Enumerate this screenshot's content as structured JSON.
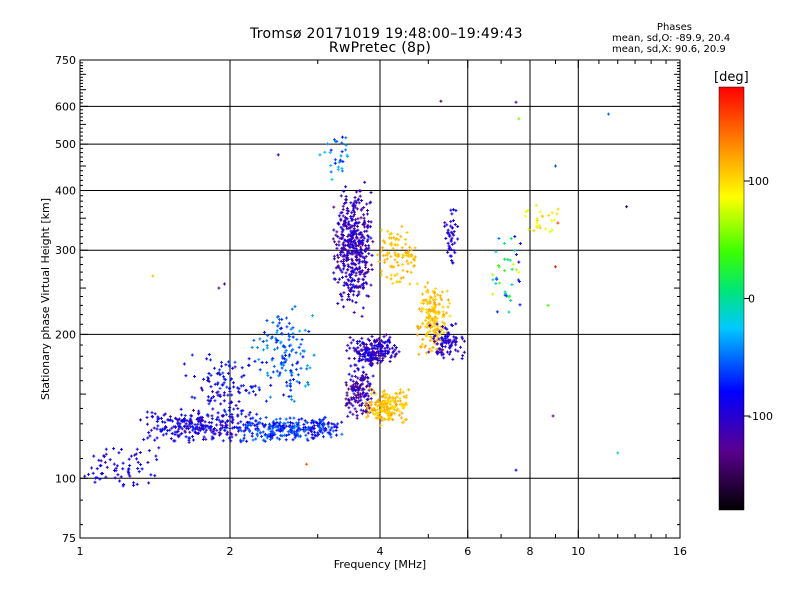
{
  "header": {
    "title": "Tromsø 20171019 19:48:00–19:49:43",
    "subtitle": "RwPretec (8p)"
  },
  "stats": {
    "heading": "Phases",
    "line_o": "mean, sd,O: -89.9, 20.4",
    "line_x": "mean, sd,X:  90.6, 20.9"
  },
  "colorbar": {
    "title": "[deg]",
    "range": [
      -180,
      180
    ],
    "ticks": [
      {
        "value": 100,
        "label": "100"
      },
      {
        "value": 0,
        "label": "0"
      },
      {
        "value": -100,
        "label": "-100"
      }
    ]
  },
  "chart_data": {
    "type": "scatter",
    "title": "Tromsø 20171019 19:48:00–19:49:43",
    "subtitle": "RwPretec (8p)",
    "xlabel": "Frequency [MHz]",
    "ylabel": "Stationary phase Virtual Height [km]",
    "xscale": "log2",
    "yscale": "log",
    "xlim": [
      1,
      16
    ],
    "ylim": [
      75,
      750
    ],
    "xticks": [
      {
        "value": 1,
        "label": "1"
      },
      {
        "value": 2,
        "label": "2"
      },
      {
        "value": 4,
        "label": "4"
      },
      {
        "value": 6,
        "label": "6"
      },
      {
        "value": 8,
        "label": "8"
      },
      {
        "value": 10,
        "label": "10"
      },
      {
        "value": 16,
        "label": "16"
      }
    ],
    "yticks": [
      {
        "value": 75,
        "label": "75"
      },
      {
        "value": 100,
        "label": "100"
      },
      {
        "value": 200,
        "label": "200"
      },
      {
        "value": 300,
        "label": "300"
      },
      {
        "value": 400,
        "label": "400"
      },
      {
        "value": 500,
        "label": "500"
      },
      {
        "value": 600,
        "label": "600"
      },
      {
        "value": 750,
        "label": "750"
      }
    ],
    "grid": true,
    "color_variable": "phase [deg]",
    "clusters": [
      {
        "f": [
          1.0,
          1.45
        ],
        "h": [
          95,
          118
        ],
        "phase": [
          -120,
          -95
        ],
        "n": 70
      },
      {
        "f": [
          1.3,
          2.3
        ],
        "h": [
          118,
          140
        ],
        "phase": [
          -125,
          -90
        ],
        "n": 260
      },
      {
        "f": [
          1.6,
          2.4
        ],
        "h": [
          130,
          185
        ],
        "phase": [
          -120,
          -80
        ],
        "n": 120
      },
      {
        "f": [
          2.0,
          3.0
        ],
        "h": [
          118,
          135
        ],
        "phase": [
          -110,
          -60
        ],
        "n": 180
      },
      {
        "f": [
          2.2,
          3.0
        ],
        "h": [
          140,
          235
        ],
        "phase": [
          -100,
          -50
        ],
        "n": 140
      },
      {
        "f": [
          2.7,
          3.4
        ],
        "h": [
          120,
          135
        ],
        "phase": [
          -115,
          -70
        ],
        "n": 90
      },
      {
        "f": [
          3.2,
          3.9
        ],
        "h": [
          215,
          420
        ],
        "phase": [
          -135,
          -100
        ],
        "n": 450
      },
      {
        "f": [
          3.4,
          4.4
        ],
        "h": [
          170,
          200
        ],
        "phase": [
          -130,
          -100
        ],
        "n": 200
      },
      {
        "f": [
          3.4,
          3.9
        ],
        "h": [
          130,
          175
        ],
        "phase": [
          -140,
          -100
        ],
        "n": 140
      },
      {
        "f": [
          3.7,
          4.6
        ],
        "h": [
          128,
          155
        ],
        "phase": [
          95,
          125
        ],
        "n": 180
      },
      {
        "f": [
          3.9,
          4.8
        ],
        "h": [
          250,
          340
        ],
        "phase": [
          100,
          120
        ],
        "n": 100
      },
      {
        "f": [
          4.7,
          5.6
        ],
        "h": [
          180,
          260
        ],
        "phase": [
          95,
          125
        ],
        "n": 180
      },
      {
        "f": [
          5.0,
          6.0
        ],
        "h": [
          175,
          215
        ],
        "phase": [
          -125,
          -100
        ],
        "n": 90
      },
      {
        "f": [
          5.3,
          5.8
        ],
        "h": [
          270,
          380
        ],
        "phase": [
          -120,
          -100
        ],
        "n": 45
      },
      {
        "f": [
          6.5,
          7.8
        ],
        "h": [
          210,
          330
        ],
        "phase": [
          -130,
          80
        ],
        "n": 40
      },
      {
        "f": [
          7.5,
          9.5
        ],
        "h": [
          320,
          380
        ],
        "phase": [
          70,
          110
        ],
        "n": 25
      },
      {
        "f": [
          3.0,
          3.6
        ],
        "h": [
          420,
          530
        ],
        "phase": [
          -100,
          -40
        ],
        "n": 30
      }
    ],
    "points": [
      {
        "f": 5.3,
        "h": 615,
        "phase": -150
      },
      {
        "f": 7.5,
        "h": 612,
        "phase": -120
      },
      {
        "f": 7.6,
        "h": 565,
        "phase": 40
      },
      {
        "f": 11.5,
        "h": 578,
        "phase": -70
      },
      {
        "f": 9.0,
        "h": 450,
        "phase": -80
      },
      {
        "f": 12.5,
        "h": 370,
        "phase": -150
      },
      {
        "f": 1.4,
        "h": 265,
        "phase": 110
      },
      {
        "f": 1.95,
        "h": 255,
        "phase": -120
      },
      {
        "f": 1.9,
        "h": 250,
        "phase": -130
      },
      {
        "f": 2.5,
        "h": 475,
        "phase": -110
      },
      {
        "f": 7.5,
        "h": 104,
        "phase": -100
      },
      {
        "f": 2.85,
        "h": 107,
        "phase": 150
      },
      {
        "f": 12.0,
        "h": 113,
        "phase": -30
      },
      {
        "f": 8.7,
        "h": 230,
        "phase": 20
      },
      {
        "f": 8.9,
        "h": 135,
        "phase": -130
      },
      {
        "f": 9.1,
        "h": 342,
        "phase": 160
      },
      {
        "f": 9.0,
        "h": 277,
        "phase": 170
      }
    ]
  }
}
